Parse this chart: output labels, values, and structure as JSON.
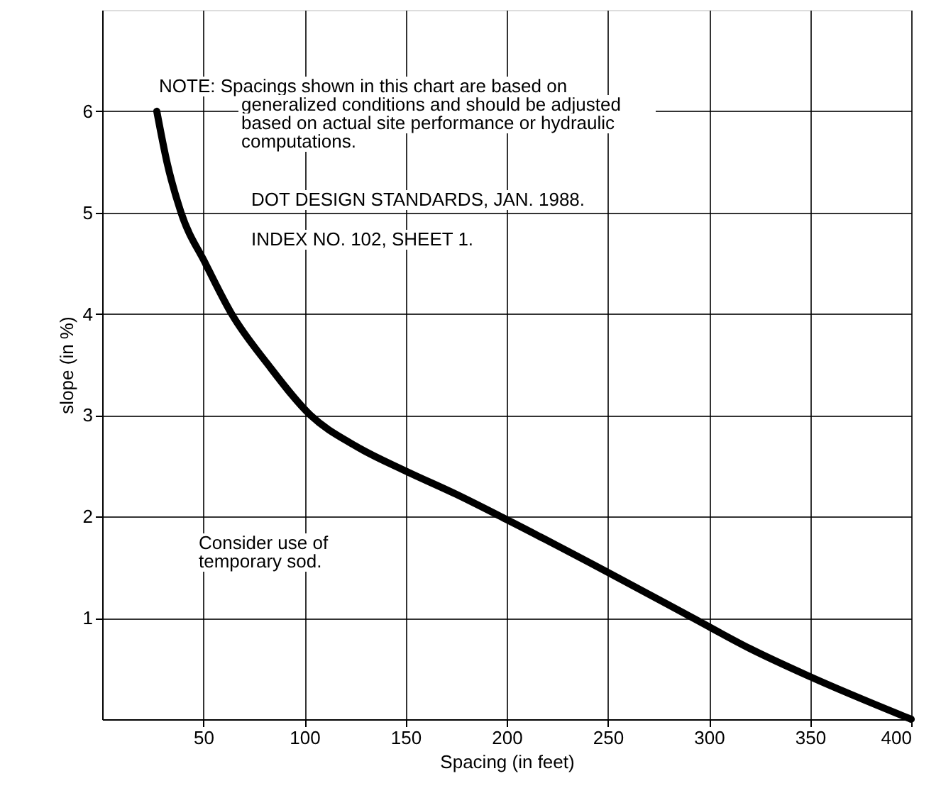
{
  "chart_data": {
    "type": "line",
    "xlabel": "Spacing (in feet)",
    "ylabel": "slope (in %)",
    "x": [
      27,
      32,
      39,
      51,
      64,
      82,
      103,
      125,
      150,
      175,
      200,
      250,
      292,
      320,
      350,
      400
    ],
    "series": [
      {
        "color": "#000000",
        "values": [
          6,
          5.5,
          5,
          4.5,
          4,
          3.5,
          3,
          2.7,
          2.45,
          2.22,
          1.97,
          1.45,
          1.0,
          0.7,
          0.42,
          0
        ]
      }
    ],
    "xlim": [
      0,
      400
    ],
    "xticks": [
      50,
      100,
      150,
      200,
      250,
      300,
      350,
      400
    ],
    "ylim": [
      0,
      7
    ],
    "yticks": [
      1,
      2,
      3,
      4,
      5,
      6
    ],
    "grid": true,
    "marker": "none",
    "line_style": "solid",
    "annotations": [
      "NOTE:  Spacings shown in this chart are based on\ngeneralized conditions and should be adjusted\nbased on actual site performance or hydraulic\ncomputations.",
      "DOT DESIGN STANDARDS, JAN. 1988.",
      "INDEX NO. 102, SHEET 1.",
      "Consider use of\ntemporary sod."
    ]
  }
}
